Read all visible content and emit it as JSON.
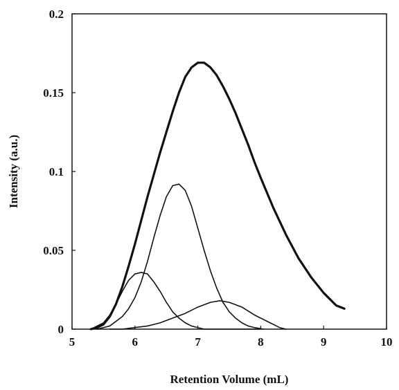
{
  "chart_data": {
    "type": "line",
    "title": "",
    "xlabel": "Retention Volume (mL)",
    "ylabel": "Intensity (a.u.)",
    "xlim": [
      5,
      10
    ],
    "ylim": [
      0,
      0.2
    ],
    "xticks": [
      "5",
      "6",
      "7",
      "8",
      "9",
      "10"
    ],
    "yticks": [
      "0",
      "0.05",
      "0.1",
      "0.15",
      "0.2"
    ],
    "grid": false,
    "legend": "none",
    "series": [
      {
        "style": "bold",
        "x": [
          5.3,
          5.4,
          5.5,
          5.6,
          5.7,
          5.8,
          5.9,
          6.0,
          6.1,
          6.2,
          6.3,
          6.4,
          6.5,
          6.6,
          6.7,
          6.8,
          6.9,
          7.0,
          7.1,
          7.2,
          7.3,
          7.4,
          7.5,
          7.6,
          7.7,
          7.8,
          7.9,
          8.0,
          8.2,
          8.4,
          8.6,
          8.8,
          9.0,
          9.2,
          9.33
        ],
        "y": [
          0.0,
          0.001,
          0.003,
          0.008,
          0.016,
          0.027,
          0.04,
          0.054,
          0.069,
          0.084,
          0.098,
          0.112,
          0.125,
          0.138,
          0.15,
          0.16,
          0.166,
          0.169,
          0.169,
          0.166,
          0.161,
          0.154,
          0.146,
          0.137,
          0.127,
          0.117,
          0.106,
          0.096,
          0.077,
          0.06,
          0.045,
          0.033,
          0.023,
          0.015,
          0.013
        ]
      },
      {
        "style": "thin",
        "x": [
          5.3,
          5.5,
          5.6,
          5.7,
          5.8,
          5.9,
          6.0,
          6.1,
          6.2,
          6.3,
          6.4,
          6.5,
          6.6,
          6.7,
          6.8,
          6.9,
          7.0,
          7.1,
          7.2,
          7.3,
          7.4,
          7.5,
          7.6,
          7.8,
          8.0
        ],
        "y": [
          0.0,
          0.004,
          0.009,
          0.016,
          0.024,
          0.031,
          0.035,
          0.036,
          0.035,
          0.03,
          0.024,
          0.017,
          0.011,
          0.007,
          0.004,
          0.002,
          0.001,
          0.0,
          0.0,
          0.0,
          0.0,
          0.0,
          0.0,
          0.0,
          0.0
        ]
      },
      {
        "style": "thin",
        "x": [
          5.4,
          5.6,
          5.8,
          5.9,
          6.0,
          6.1,
          6.2,
          6.3,
          6.4,
          6.5,
          6.6,
          6.7,
          6.8,
          6.9,
          7.0,
          7.1,
          7.2,
          7.3,
          7.4,
          7.5,
          7.6,
          7.7,
          7.8,
          7.9,
          8.05
        ],
        "y": [
          0.0,
          0.002,
          0.008,
          0.013,
          0.02,
          0.03,
          0.043,
          0.058,
          0.072,
          0.084,
          0.091,
          0.092,
          0.088,
          0.078,
          0.064,
          0.05,
          0.037,
          0.026,
          0.017,
          0.011,
          0.007,
          0.004,
          0.002,
          0.001,
          0.0
        ]
      },
      {
        "style": "thin",
        "x": [
          5.6,
          5.8,
          6.0,
          6.2,
          6.4,
          6.6,
          6.8,
          7.0,
          7.2,
          7.35,
          7.5,
          7.7,
          7.9,
          8.1,
          8.3,
          8.4
        ],
        "y": [
          0.0,
          0.0,
          0.001,
          0.002,
          0.004,
          0.007,
          0.01,
          0.014,
          0.017,
          0.018,
          0.017,
          0.014,
          0.009,
          0.005,
          0.001,
          0.0
        ]
      }
    ]
  }
}
